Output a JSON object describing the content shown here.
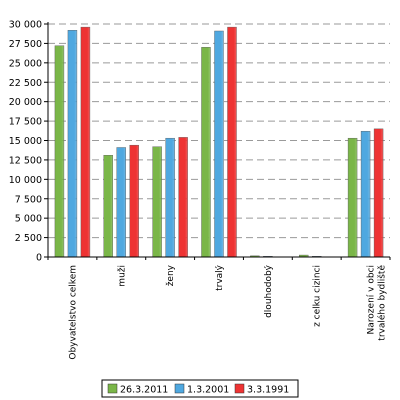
{
  "chart_data": {
    "type": "bar",
    "categories": [
      [
        "Obyvatelstvo  celkem"
      ],
      [
        "muži"
      ],
      [
        "ženy"
      ],
      [
        "trvalý"
      ],
      [
        "dlouhodobý"
      ],
      [
        "z celku cizinci"
      ],
      [
        "Narození v obci",
        "trvalého bydliště"
      ]
    ],
    "series": [
      {
        "name": "26.3.2011",
        "color": "#7ab648",
        "values": [
          27200,
          13100,
          14200,
          27000,
          150,
          250,
          15300
        ]
      },
      {
        "name": "1.3.2001",
        "color": "#4fa8e0",
        "values": [
          29200,
          14100,
          15300,
          29100,
          100,
          100,
          16200
        ]
      },
      {
        "name": "3.3.1991",
        "color": "#ee3333",
        "values": [
          29600,
          14400,
          15400,
          29600,
          0,
          0,
          16500
        ]
      }
    ],
    "yticks": [
      0,
      2500,
      5000,
      7500,
      10000,
      12500,
      15000,
      17500,
      20000,
      22500,
      25000,
      27500,
      30000
    ],
    "ytick_labels": [
      "0",
      "2 500",
      "5 000",
      "7 500",
      "10 000",
      "12 500",
      "15 000",
      "17 500",
      "20 000",
      "22 500",
      "25 000",
      "27 500",
      "30 000"
    ],
    "ylim": [
      0,
      30000
    ],
    "grid": true,
    "legend_position": "bottom"
  }
}
